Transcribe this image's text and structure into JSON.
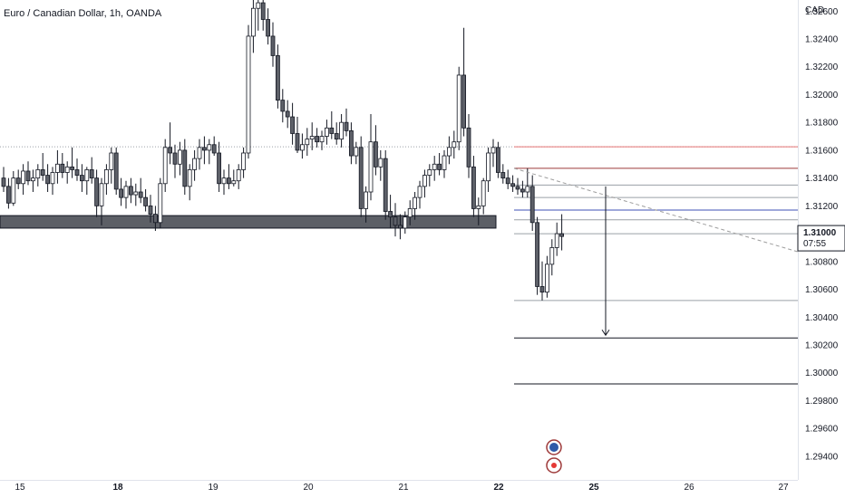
{
  "title": "Euro / Canadian Dollar, 1h, OANDA",
  "currency": "CAD",
  "colors": {
    "candle_body": "#5d6068",
    "candle_wick": "#131722",
    "zone_fill": "#5c5f66",
    "red_line": "#e57373",
    "dark_red_line": "#9e3a3a",
    "blue_line": "#3f51b5",
    "grey_line": "#9aa0a6",
    "dashed_trend": "#9e9e9e",
    "dark_line": "#131722"
  },
  "chart_data": {
    "type": "candlestick",
    "y_ticks": [
      "1.32600",
      "1.32400",
      "1.32200",
      "1.32000",
      "1.31800",
      "1.31600",
      "1.31400",
      "1.31200",
      "1.31000",
      "1.30800",
      "1.30600",
      "1.30400",
      "1.30200",
      "1.30000",
      "1.29800",
      "1.29600",
      "1.29400"
    ],
    "x_labels": [
      "15",
      "18",
      "19",
      "20",
      "21",
      "22",
      "25",
      "26",
      "27"
    ],
    "bold_x_labels": [
      "18",
      "22",
      "25"
    ],
    "ylim": [
      1.2923,
      1.3268
    ],
    "price_label": {
      "value": "1.31000",
      "countdown": "07:55"
    },
    "previous_close_dotted": 1.31625,
    "support_zone": [
      1.3104,
      1.3113
    ],
    "horizontal_levels": [
      {
        "price": 1.31625,
        "color": "red",
        "from": "22"
      },
      {
        "price": 1.3147,
        "color": "dark_red",
        "from": "22"
      },
      {
        "price": 1.3135,
        "color": "grey",
        "from": "22"
      },
      {
        "price": 1.3126,
        "color": "grey",
        "from": "22"
      },
      {
        "price": 1.3117,
        "color": "blue",
        "from": "22"
      },
      {
        "price": 1.311,
        "color": "grey",
        "from": "22"
      },
      {
        "price": 1.31,
        "color": "grey",
        "from": "22"
      },
      {
        "price": 1.3052,
        "color": "grey",
        "from": "22"
      },
      {
        "price": 1.3025,
        "color": "dark",
        "from": "22"
      },
      {
        "price": 1.2992,
        "color": "dark",
        "from": "22"
      }
    ],
    "trend_line": {
      "from_price": 1.3147,
      "to_price": 1.3087,
      "style": "dashed"
    },
    "arrow": {
      "from_price": 1.3134,
      "to_price": 1.3027,
      "direction": "down"
    },
    "candles": [
      [
        1.314,
        1.3148,
        1.313,
        1.3134
      ],
      [
        1.3134,
        1.314,
        1.3118,
        1.3122
      ],
      [
        1.3122,
        1.3145,
        1.312,
        1.314
      ],
      [
        1.314,
        1.3146,
        1.3132,
        1.3136
      ],
      [
        1.3136,
        1.315,
        1.3128,
        1.3145
      ],
      [
        1.3145,
        1.3152,
        1.3135,
        1.3138
      ],
      [
        1.3138,
        1.3146,
        1.313,
        1.314
      ],
      [
        1.314,
        1.315,
        1.3134,
        1.3146
      ],
      [
        1.3146,
        1.3158,
        1.3138,
        1.3142
      ],
      [
        1.3142,
        1.315,
        1.313,
        1.3136
      ],
      [
        1.3136,
        1.3148,
        1.3128,
        1.3144
      ],
      [
        1.3144,
        1.316,
        1.3136,
        1.315
      ],
      [
        1.315,
        1.3158,
        1.314,
        1.3144
      ],
      [
        1.3144,
        1.3152,
        1.3136,
        1.3148
      ],
      [
        1.3148,
        1.3162,
        1.314,
        1.3146
      ],
      [
        1.3146,
        1.3154,
        1.3138,
        1.3142
      ],
      [
        1.3142,
        1.315,
        1.313,
        1.3138
      ],
      [
        1.3138,
        1.3148,
        1.3128,
        1.3146
      ],
      [
        1.3146,
        1.3155,
        1.3136,
        1.314
      ],
      [
        1.314,
        1.3146,
        1.3112,
        1.312
      ],
      [
        1.312,
        1.314,
        1.3106,
        1.3136
      ],
      [
        1.3136,
        1.315,
        1.3128,
        1.3146
      ],
      [
        1.3146,
        1.3162,
        1.3136,
        1.3158
      ],
      [
        1.3158,
        1.3162,
        1.3128,
        1.3132
      ],
      [
        1.3132,
        1.314,
        1.312,
        1.3126
      ],
      [
        1.3126,
        1.3138,
        1.3118,
        1.3134
      ],
      [
        1.3134,
        1.314,
        1.3122,
        1.3128
      ],
      [
        1.3128,
        1.3136,
        1.312,
        1.313
      ],
      [
        1.313,
        1.314,
        1.3122,
        1.3126
      ],
      [
        1.3126,
        1.3132,
        1.3116,
        1.312
      ],
      [
        1.312,
        1.3128,
        1.3108,
        1.3114
      ],
      [
        1.3114,
        1.312,
        1.3102,
        1.3108
      ],
      [
        1.3108,
        1.314,
        1.3104,
        1.3136
      ],
      [
        1.3136,
        1.3168,
        1.313,
        1.3162
      ],
      [
        1.3162,
        1.318,
        1.315,
        1.3158
      ],
      [
        1.3158,
        1.3164,
        1.314,
        1.315
      ],
      [
        1.315,
        1.3166,
        1.3142,
        1.316
      ],
      [
        1.316,
        1.3168,
        1.3128,
        1.3134
      ],
      [
        1.3134,
        1.315,
        1.3124,
        1.3146
      ],
      [
        1.3146,
        1.316,
        1.3138,
        1.3154
      ],
      [
        1.3154,
        1.3168,
        1.3146,
        1.3162
      ],
      [
        1.3162,
        1.317,
        1.315,
        1.316
      ],
      [
        1.316,
        1.3168,
        1.315,
        1.3164
      ],
      [
        1.3164,
        1.317,
        1.3156,
        1.3158
      ],
      [
        1.3158,
        1.3166,
        1.313,
        1.3136
      ],
      [
        1.3136,
        1.3146,
        1.3128,
        1.314
      ],
      [
        1.314,
        1.315,
        1.3132,
        1.3136
      ],
      [
        1.3136,
        1.3146,
        1.3134,
        1.3138
      ],
      [
        1.3138,
        1.315,
        1.3132,
        1.3146
      ],
      [
        1.3146,
        1.3162,
        1.314,
        1.3158
      ],
      [
        1.3158,
        1.325,
        1.3154,
        1.3242
      ],
      [
        1.3242,
        1.3272,
        1.323,
        1.3262
      ],
      [
        1.3262,
        1.3272,
        1.3246,
        1.3266
      ],
      [
        1.3266,
        1.3272,
        1.3246,
        1.3254
      ],
      [
        1.3254,
        1.3262,
        1.3236,
        1.3242
      ],
      [
        1.3242,
        1.3252,
        1.322,
        1.3228
      ],
      [
        1.3228,
        1.3236,
        1.319,
        1.3196
      ],
      [
        1.3196,
        1.3204,
        1.318,
        1.3188
      ],
      [
        1.3188,
        1.3196,
        1.3176,
        1.3184
      ],
      [
        1.3184,
        1.3194,
        1.3164,
        1.3172
      ],
      [
        1.3172,
        1.3184,
        1.3158,
        1.316
      ],
      [
        1.316,
        1.3172,
        1.3154,
        1.3164
      ],
      [
        1.3164,
        1.3176,
        1.3156,
        1.3168
      ],
      [
        1.3168,
        1.318,
        1.316,
        1.317
      ],
      [
        1.317,
        1.3176,
        1.3162,
        1.3166
      ],
      [
        1.3166,
        1.3174,
        1.316,
        1.317
      ],
      [
        1.317,
        1.3182,
        1.3164,
        1.3176
      ],
      [
        1.3176,
        1.3188,
        1.3168,
        1.3172
      ],
      [
        1.3172,
        1.318,
        1.3164,
        1.3168
      ],
      [
        1.3168,
        1.3186,
        1.3162,
        1.318
      ],
      [
        1.318,
        1.319,
        1.317,
        1.3174
      ],
      [
        1.3174,
        1.318,
        1.315,
        1.3156
      ],
      [
        1.3156,
        1.3166,
        1.315,
        1.3162
      ],
      [
        1.3162,
        1.317,
        1.3112,
        1.3118
      ],
      [
        1.3118,
        1.3134,
        1.3108,
        1.313
      ],
      [
        1.313,
        1.3186,
        1.3124,
        1.3166
      ],
      [
        1.3166,
        1.3178,
        1.3142,
        1.3148
      ],
      [
        1.3148,
        1.316,
        1.3138,
        1.3154
      ],
      [
        1.3154,
        1.316,
        1.311,
        1.3116
      ],
      [
        1.3116,
        1.3128,
        1.3104,
        1.3112
      ],
      [
        1.3112,
        1.3122,
        1.3098,
        1.3106
      ],
      [
        1.3106,
        1.3114,
        1.3096,
        1.3104
      ],
      [
        1.3104,
        1.3116,
        1.31,
        1.3112
      ],
      [
        1.3112,
        1.3124,
        1.3106,
        1.3118
      ],
      [
        1.3118,
        1.313,
        1.311,
        1.3126
      ],
      [
        1.3126,
        1.3138,
        1.3118,
        1.3134
      ],
      [
        1.3134,
        1.3146,
        1.3126,
        1.3142
      ],
      [
        1.3142,
        1.315,
        1.3134,
        1.3146
      ],
      [
        1.3146,
        1.3156,
        1.3138,
        1.315
      ],
      [
        1.315,
        1.3158,
        1.3142,
        1.3146
      ],
      [
        1.3146,
        1.316,
        1.314,
        1.3156
      ],
      [
        1.3156,
        1.317,
        1.315,
        1.3162
      ],
      [
        1.3162,
        1.3174,
        1.3154,
        1.3166
      ],
      [
        1.3166,
        1.322,
        1.316,
        1.3214
      ],
      [
        1.3214,
        1.3248,
        1.317,
        1.3176
      ],
      [
        1.3176,
        1.3186,
        1.314,
        1.3148
      ],
      [
        1.3148,
        1.3156,
        1.3112,
        1.3118
      ],
      [
        1.3118,
        1.3126,
        1.3106,
        1.312
      ],
      [
        1.312,
        1.314,
        1.3114,
        1.3138
      ],
      [
        1.3138,
        1.3162,
        1.313,
        1.3158
      ],
      [
        1.3158,
        1.3168,
        1.3148,
        1.3162
      ],
      [
        1.3162,
        1.3166,
        1.314,
        1.3144
      ],
      [
        1.3144,
        1.315,
        1.3136,
        1.314
      ],
      [
        1.314,
        1.3146,
        1.3132,
        1.3136
      ],
      [
        1.3136,
        1.3142,
        1.313,
        1.3134
      ],
      [
        1.3134,
        1.314,
        1.3128,
        1.3132
      ],
      [
        1.3132,
        1.3138,
        1.3126,
        1.313
      ],
      [
        1.313,
        1.3147,
        1.3126,
        1.3134
      ],
      [
        1.3134,
        1.3142,
        1.3102,
        1.3108
      ],
      [
        1.3108,
        1.3112,
        1.3056,
        1.3062
      ],
      [
        1.3062,
        1.308,
        1.3052,
        1.3058
      ],
      [
        1.3058,
        1.3084,
        1.3054,
        1.3078
      ],
      [
        1.3078,
        1.3096,
        1.307,
        1.309
      ],
      [
        1.309,
        1.3108,
        1.3084,
        1.31
      ],
      [
        1.31,
        1.3114,
        1.3088,
        1.3098
      ]
    ]
  }
}
